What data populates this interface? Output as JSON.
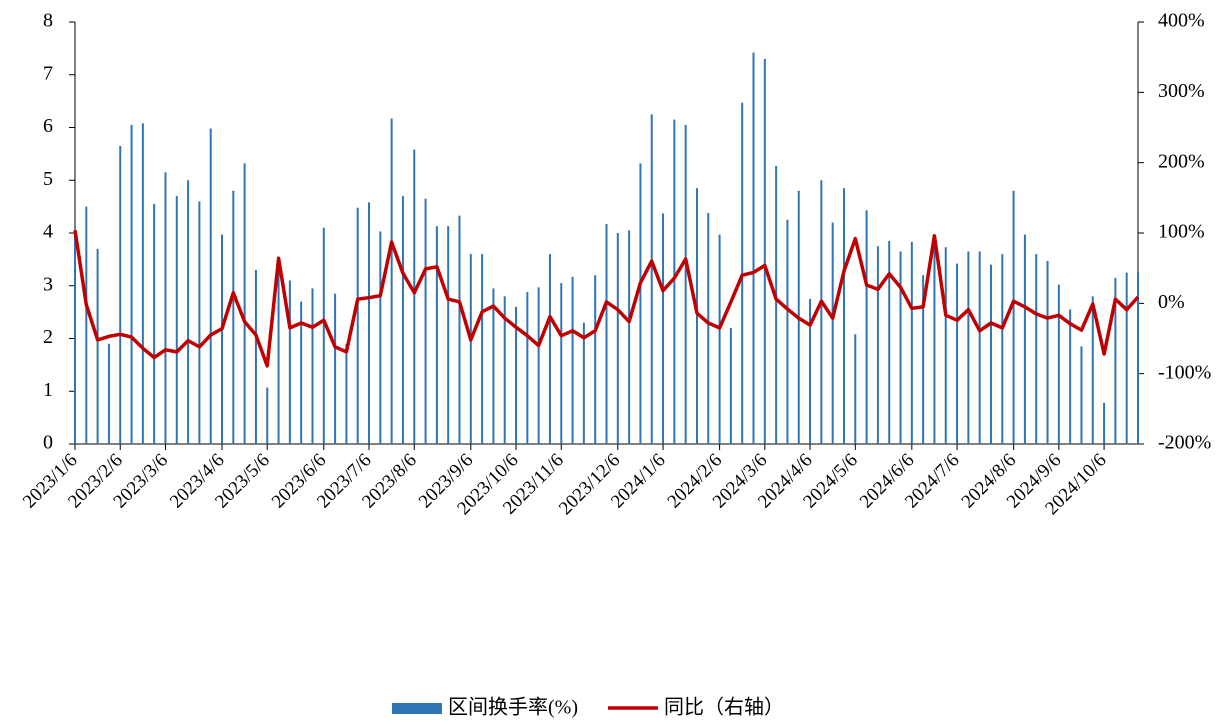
{
  "chart_data": {
    "type": "bar",
    "categories": [
      "2023/1/6",
      null,
      null,
      null,
      "2023/2/6",
      null,
      null,
      null,
      "2023/3/6",
      null,
      null,
      null,
      null,
      "2023/4/6",
      null,
      null,
      null,
      "2023/5/6",
      null,
      null,
      null,
      null,
      "2023/6/6",
      null,
      null,
      null,
      "2023/7/6",
      null,
      null,
      null,
      "2023/8/6",
      null,
      null,
      null,
      null,
      "2023/9/6",
      null,
      null,
      null,
      "2023/10/6",
      null,
      null,
      null,
      "2023/11/6",
      null,
      null,
      null,
      null,
      "2023/12/6",
      null,
      null,
      null,
      "2024/1/6",
      null,
      null,
      null,
      null,
      "2024/2/6",
      null,
      null,
      null,
      "2024/3/6",
      null,
      null,
      null,
      "2024/4/6",
      null,
      null,
      null,
      "2024/5/6",
      null,
      null,
      null,
      null,
      "2024/6/6",
      null,
      null,
      null,
      "2024/7/6",
      null,
      null,
      null,
      null,
      "2024/8/6",
      null,
      null,
      null,
      "2024/9/6",
      null,
      null,
      null,
      "2024/10/6",
      null,
      null,
      null
    ],
    "series": [
      {
        "name": "区间换手率(%)",
        "type": "bar",
        "color": "#2e75b6",
        "values": [
          4.0,
          4.5,
          3.7,
          1.9,
          5.65,
          6.05,
          6.08,
          4.55,
          5.15,
          4.7,
          5.0,
          4.6,
          5.98,
          3.97,
          4.8,
          5.32,
          3.3,
          1.07,
          3.5,
          3.1,
          2.7,
          2.95,
          4.1,
          2.85,
          1.9,
          4.48,
          4.58,
          4.03,
          6.17,
          4.7,
          5.58,
          4.65,
          4.13,
          4.13,
          4.33,
          3.6,
          3.6,
          2.95,
          2.8,
          2.6,
          2.88,
          2.97,
          3.6,
          3.05,
          3.17,
          2.3,
          3.2,
          4.17,
          4.0,
          4.05,
          5.32,
          6.25,
          4.37,
          6.15,
          6.05,
          4.85,
          4.38,
          3.97,
          2.2,
          6.47,
          7.42,
          7.3,
          5.27,
          4.25,
          4.8,
          2.75,
          5.0,
          4.2,
          4.85,
          2.08,
          4.43,
          3.75,
          3.85,
          3.65,
          3.83,
          3.2,
          3.9,
          3.73,
          3.42,
          3.65,
          3.65,
          3.4,
          3.6,
          4.8,
          3.97,
          3.6,
          3.47,
          3.02,
          2.55,
          1.85,
          2.8,
          0.78,
          3.15,
          3.25,
          3.25
        ]
      },
      {
        "name": "同比（右轴）",
        "type": "line",
        "axis": "y2",
        "color": "#c00000",
        "values": [
          104,
          -2,
          -52,
          -47,
          -44,
          -48,
          -64,
          -77,
          -66,
          -69,
          -53,
          -62,
          -45,
          -36,
          15,
          -26,
          -45,
          -89,
          64,
          -35,
          -28,
          -34,
          -24,
          -62,
          -69,
          6,
          8,
          11,
          87,
          43,
          15,
          49,
          52,
          6,
          2,
          -52,
          -12,
          -4,
          -21,
          -34,
          -46,
          -60,
          -19,
          -46,
          -39,
          -49,
          -39,
          2,
          -9,
          -26,
          29,
          60,
          18,
          36,
          63,
          -14,
          -28,
          -35,
          2,
          40,
          44,
          54,
          6,
          -8,
          -21,
          -31,
          3,
          -21,
          46,
          92,
          26,
          20,
          42,
          23,
          -7,
          -5,
          96,
          -17,
          -24,
          -9,
          -39,
          -28,
          -35,
          3,
          -5,
          -15,
          -21,
          -17,
          -29,
          -38,
          -1,
          -72,
          6,
          -9,
          9
        ]
      }
    ],
    "ylim": [
      0,
      8
    ],
    "yticks": [
      0,
      1,
      2,
      3,
      4,
      5,
      6,
      7,
      8
    ],
    "y2lim": [
      -200,
      400
    ],
    "y2ticks": [
      {
        "value": 400,
        "label": "400%"
      },
      {
        "value": 300,
        "label": "300%"
      },
      {
        "value": 200,
        "label": "200%"
      },
      {
        "value": 100,
        "label": "100%"
      },
      {
        "value": 0,
        "label": "0%"
      },
      {
        "value": -100,
        "label": "-100%"
      },
      {
        "value": -200,
        "label": "-200%"
      }
    ],
    "legend": "bottom"
  }
}
